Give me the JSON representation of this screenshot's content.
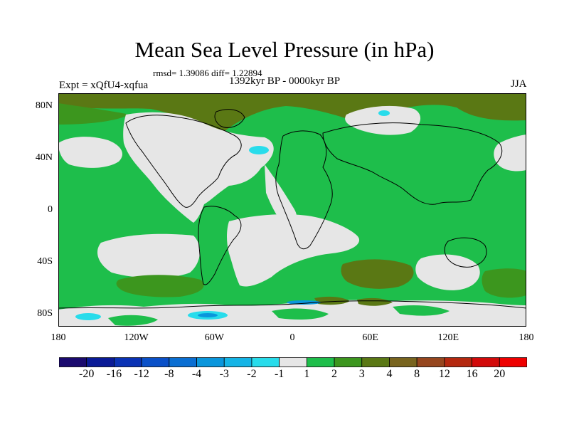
{
  "title": "Mean Sea Level Pressure (in hPa)",
  "stats": "rmsd= 1.39086 diff= 1.22894",
  "period": "1392kyr BP - 0000kyr BP",
  "experiment": "Expt = xQfU4-xqfua",
  "season": "JJA",
  "lat_ticks": [
    {
      "label": "80N",
      "lat": 80
    },
    {
      "label": "40N",
      "lat": 40
    },
    {
      "label": "0",
      "lat": 0
    },
    {
      "label": "40S",
      "lat": -40
    },
    {
      "label": "80S",
      "lat": -80
    }
  ],
  "lon_ticks": [
    {
      "label": "180",
      "lon": -180
    },
    {
      "label": "120W",
      "lon": -120
    },
    {
      "label": "60W",
      "lon": -60
    },
    {
      "label": "0",
      "lon": 0
    },
    {
      "label": "60E",
      "lon": 60
    },
    {
      "label": "120E",
      "lon": 120
    },
    {
      "label": "180",
      "lon": 180
    }
  ],
  "colorbar": {
    "levels": [
      "-20",
      "-16",
      "-12",
      "-8",
      "-4",
      "-3",
      "-2",
      "-1",
      "1",
      "2",
      "3",
      "4",
      "8",
      "12",
      "16",
      "20"
    ],
    "colors": [
      "#1a0a6e",
      "#0a1a96",
      "#0a32b4",
      "#0a50c8",
      "#0a6ed2",
      "#0a96dc",
      "#14b4e6",
      "#28dceb",
      "#e6e6e6",
      "#1ebe4b",
      "#3c961e",
      "#5a7814",
      "#78641e",
      "#96461e",
      "#b4280f",
      "#d20a0a",
      "#ee0000"
    ]
  },
  "colors": {
    "land_outline": "#000000",
    "neutral": "#e6e6e6",
    "green": "#1ebe4b",
    "dark_green": "#3c961e",
    "olive": "#5a7814",
    "brown": "#78641e",
    "light_blue": "#28dceb",
    "mid_blue": "#0a96dc"
  }
}
